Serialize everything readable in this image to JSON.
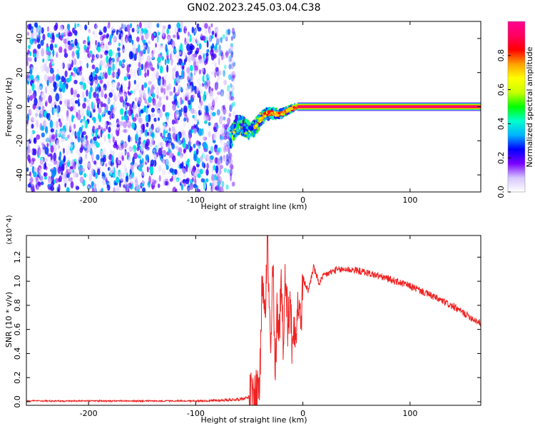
{
  "figure": {
    "title": "GN02.2023.245.03.04.C38"
  },
  "chart_data": [
    {
      "type": "heatmap",
      "title": "GN02.2023.245.03.04.C38",
      "xlabel": "Height of straight line (km)",
      "ylabel": "Frequency (Hz)",
      "xlim": [
        -258,
        166
      ],
      "ylim": [
        -50,
        50
      ],
      "x_ticks": [
        -200,
        -100,
        0,
        100
      ],
      "y_ticks": [
        -40,
        -20,
        0,
        20,
        40
      ],
      "colorbar": {
        "label": "Normalized spectral amplitude",
        "range": [
          0.0,
          1.0
        ],
        "ticks": [
          0.0,
          0.2,
          0.4,
          0.6,
          0.8
        ],
        "colormap": [
          "#ffffff",
          "#d6c6ff",
          "#7a00ff",
          "#0000ff",
          "#00b4ff",
          "#00ffcc",
          "#00ff00",
          "#c8ff00",
          "#ffff00",
          "#ffa000",
          "#ff0000",
          "#ff0060",
          "#ff0090"
        ]
      },
      "regions": [
        {
          "name": "noise",
          "x_range": [
            -258,
            -68
          ],
          "f_range": [
            -50,
            48
          ],
          "amplitude_range": [
            0.0,
            0.25
          ]
        },
        {
          "name": "transition",
          "x_range": [
            -68,
            -5
          ],
          "f_center_range": [
            -22,
            5
          ],
          "amplitude_range": [
            0.2,
            0.6
          ]
        },
        {
          "name": "carrier",
          "x_range": [
            -5,
            166
          ],
          "f_center": 0,
          "amplitude": 1.0
        }
      ],
      "grid": false
    },
    {
      "type": "line",
      "xlabel": "Height of straight line (km)",
      "ylabel": "SNR (10 * v/v)",
      "y_multiplier": "(x10^4)",
      "xlim": [
        -258,
        166
      ],
      "ylim": [
        -0.03,
        1.38
      ],
      "x_ticks": [
        -200,
        -100,
        0,
        100
      ],
      "y_ticks": [
        0.0,
        0.2,
        0.4,
        0.6,
        0.8,
        1.0,
        1.2
      ],
      "color": "#ee2222",
      "series": [
        {
          "x": [
            -258,
            -200,
            -150,
            -100,
            -60,
            -45,
            -40,
            -38,
            -35,
            -33,
            -30,
            -28,
            -26,
            -24,
            -22,
            -20,
            -18,
            -16,
            -14,
            -12,
            -10,
            -8,
            -6,
            -4,
            -2,
            0,
            5,
            10,
            15,
            20,
            25,
            30,
            40,
            50,
            60,
            80,
            100,
            120,
            140,
            166
          ],
          "y": [
            0.0,
            0.0,
            0.0,
            0.0,
            0.02,
            0.05,
            0.2,
            1.05,
            0.85,
            1.35,
            0.3,
            1.18,
            0.15,
            0.78,
            0.6,
            1.05,
            0.42,
            1.2,
            0.55,
            0.95,
            0.4,
            0.68,
            0.65,
            0.85,
            0.6,
            1.02,
            0.92,
            1.12,
            0.98,
            1.05,
            1.07,
            1.09,
            1.1,
            1.09,
            1.07,
            1.02,
            0.96,
            0.88,
            0.79,
            0.65
          ]
        }
      ],
      "grid": false
    }
  ]
}
